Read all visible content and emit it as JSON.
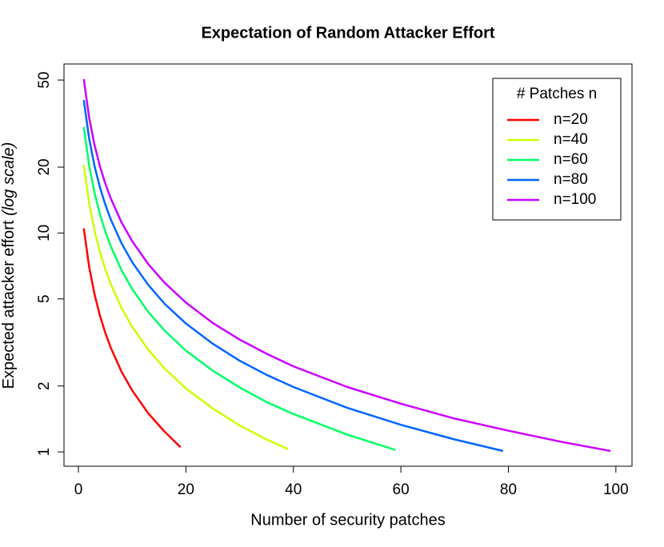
{
  "chart_data": {
    "type": "line",
    "title": "Expectation of Random Attacker Effort",
    "x_label": "Number of security patches",
    "y_label": "Expected attacker effort",
    "y_label_note": "(log scale)",
    "log_y": true,
    "legend_title": "# Patches n",
    "legend_position": "topright",
    "xlim": [
      -2.68,
      103.0
    ],
    "ylim": [
      0.86,
      59.2
    ],
    "xticks": [
      0,
      20,
      40,
      60,
      80,
      100
    ],
    "yticks": [
      1,
      2,
      5,
      10,
      20,
      50
    ],
    "series": [
      {
        "name": "n=20",
        "color": "#ff0000",
        "x": [
          1,
          2,
          3,
          4,
          5,
          6,
          8,
          10,
          13,
          16,
          19
        ],
        "values": [
          10.5,
          7,
          5.25,
          4.2,
          3.5,
          3,
          2.33,
          1.91,
          1.5,
          1.24,
          1.05
        ]
      },
      {
        "name": "n=40",
        "color": "#ccff00",
        "x": [
          1,
          2,
          3,
          4,
          5,
          6,
          8,
          10,
          13,
          16,
          20,
          25,
          30,
          35,
          39
        ],
        "values": [
          20.5,
          13.67,
          10.25,
          8.2,
          6.83,
          5.86,
          4.56,
          3.73,
          2.93,
          2.41,
          1.95,
          1.58,
          1.32,
          1.14,
          1.03
        ]
      },
      {
        "name": "n=60",
        "color": "#00ff66",
        "x": [
          1,
          2,
          3,
          4,
          5,
          6,
          8,
          10,
          13,
          16,
          20,
          25,
          30,
          35,
          40,
          50,
          59
        ],
        "values": [
          30.5,
          20.33,
          15.25,
          12.2,
          10.17,
          8.71,
          6.78,
          5.55,
          4.36,
          3.59,
          2.9,
          2.35,
          1.97,
          1.69,
          1.49,
          1.2,
          1.02
        ]
      },
      {
        "name": "n=80",
        "color": "#0066ff",
        "x": [
          1,
          2,
          3,
          4,
          5,
          6,
          8,
          10,
          13,
          16,
          20,
          25,
          30,
          35,
          40,
          50,
          60,
          70,
          79
        ],
        "values": [
          40.5,
          27,
          20.25,
          16.2,
          13.5,
          11.57,
          9,
          7.36,
          5.79,
          4.76,
          3.86,
          3.12,
          2.61,
          2.25,
          1.98,
          1.59,
          1.33,
          1.14,
          1.01
        ]
      },
      {
        "name": "n=100",
        "color": "#cc00ff",
        "x": [
          1,
          2,
          3,
          4,
          5,
          6,
          8,
          10,
          13,
          16,
          20,
          25,
          30,
          35,
          40,
          50,
          60,
          70,
          80,
          90,
          99
        ],
        "values": [
          50.5,
          33.67,
          25.25,
          20.2,
          16.83,
          14.43,
          11.22,
          9.18,
          7.21,
          5.94,
          4.81,
          3.88,
          3.26,
          2.81,
          2.46,
          1.98,
          1.66,
          1.42,
          1.25,
          1.11,
          1.01
        ]
      }
    ]
  }
}
